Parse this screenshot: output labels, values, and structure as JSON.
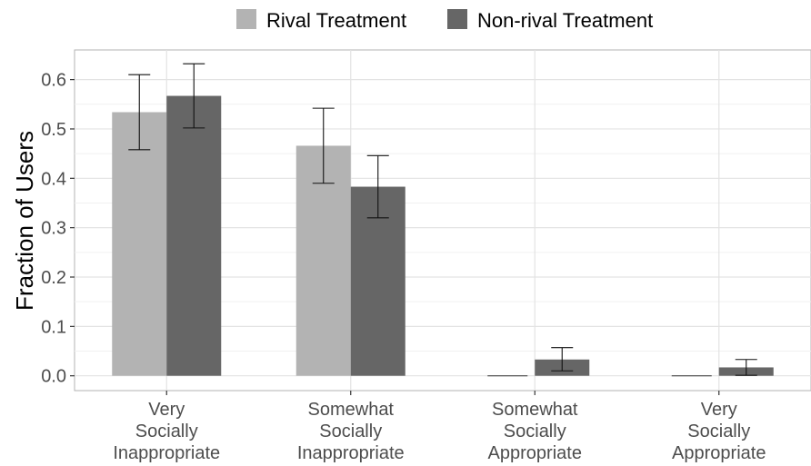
{
  "chart_data": {
    "type": "bar",
    "ylabel": "Fraction of Users",
    "xlabel": "",
    "categories": [
      [
        "Very",
        "Socially",
        "Inappropriate"
      ],
      [
        "Somewhat",
        "Socially",
        "Inappropriate"
      ],
      [
        "Somewhat",
        "Socially",
        "Appropriate"
      ],
      [
        "Very",
        "Socially",
        "Appropriate"
      ]
    ],
    "series": [
      {
        "name": "Rival Treatment",
        "color": "#b3b3b3",
        "values": [
          0.534,
          0.466,
          0.0,
          0.0
        ],
        "err_low": [
          0.458,
          0.39,
          0.0,
          0.0
        ],
        "err_high": [
          0.61,
          0.542,
          0.0,
          0.0
        ]
      },
      {
        "name": "Non-rival Treatment",
        "color": "#666666",
        "values": [
          0.567,
          0.383,
          0.033,
          0.017
        ],
        "err_low": [
          0.502,
          0.32,
          0.01,
          0.001
        ],
        "err_high": [
          0.632,
          0.446,
          0.057,
          0.033
        ]
      }
    ],
    "ylim": [
      -0.03,
      0.66
    ],
    "yticks": [
      0.0,
      0.1,
      0.2,
      0.3,
      0.4,
      0.5,
      0.6
    ],
    "ytick_labels": [
      "0.0",
      "0.1",
      "0.2",
      "0.3",
      "0.4",
      "0.5",
      "0.6"
    ],
    "grid": true,
    "legend_position": "top"
  }
}
